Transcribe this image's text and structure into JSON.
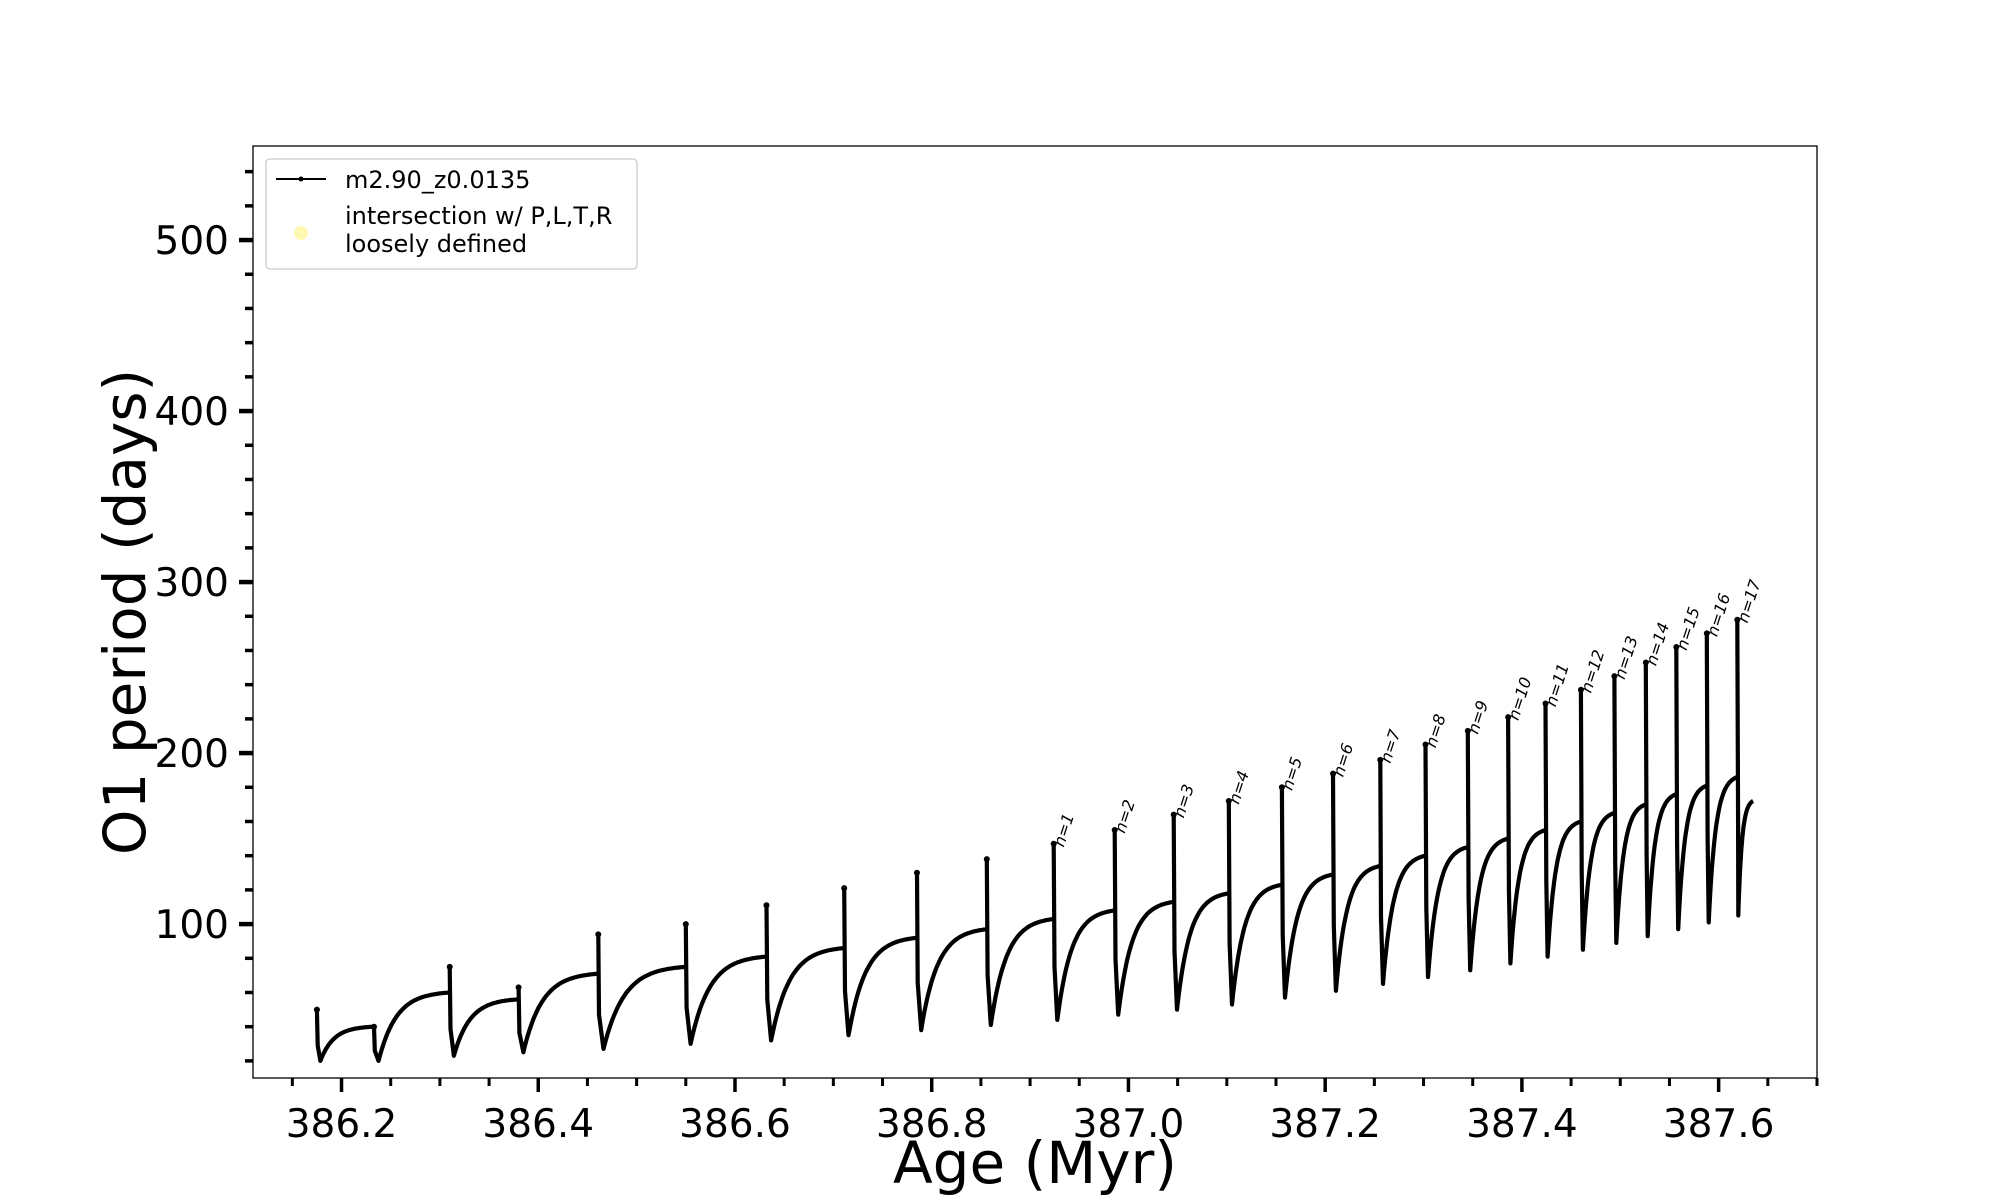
{
  "chart_data": {
    "type": "line",
    "title": "",
    "xlabel": "Age (Myr)",
    "ylabel": "O1 period (days)",
    "xlim": [
      386.11,
      387.7
    ],
    "ylim": [
      10,
      555
    ],
    "xticks": [
      386.2,
      386.4,
      386.6,
      386.8,
      387.0,
      387.2,
      387.4,
      387.6
    ],
    "xtick_labels": [
      "386.2",
      "386.4",
      "386.6",
      "386.8",
      "387.0",
      "387.2",
      "387.4",
      "387.6"
    ],
    "yticks": [
      100,
      200,
      300,
      400,
      500
    ],
    "ytick_labels": [
      "100",
      "200",
      "300",
      "400",
      "500"
    ],
    "grid": false,
    "legend_position": "top-left",
    "legend": [
      {
        "label": "m2.90_z0.0135",
        "marker": "line-dot",
        "color": "#000000"
      },
      {
        "label_lines": [
          "intersection w/ P,L,T,R",
          "loosely defined"
        ],
        "marker": "circle",
        "color": "#fff8b0"
      }
    ],
    "series": [
      {
        "name": "m2.90_z0.0135",
        "color": "#000000",
        "cycles": [
          {
            "start": 386.175,
            "end": 386.233,
            "spike": 50,
            "min": 20,
            "plateau": 40
          },
          {
            "start": 386.233,
            "end": 386.31,
            "spike": 40,
            "min": 20,
            "plateau": 60
          },
          {
            "start": 386.31,
            "end": 386.38,
            "spike": 75,
            "min": 23,
            "plateau": 56
          },
          {
            "start": 386.38,
            "end": 386.461,
            "spike": 63,
            "min": 25,
            "plateau": 71
          },
          {
            "start": 386.461,
            "end": 386.55,
            "spike": 94,
            "min": 27,
            "plateau": 75
          },
          {
            "start": 386.55,
            "end": 386.632,
            "spike": 100,
            "min": 30,
            "plateau": 81
          },
          {
            "start": 386.632,
            "end": 386.711,
            "spike": 111,
            "min": 32,
            "plateau": 86
          },
          {
            "start": 386.711,
            "end": 386.785,
            "spike": 121,
            "min": 35,
            "plateau": 92
          },
          {
            "start": 386.785,
            "end": 386.856,
            "spike": 130,
            "min": 38,
            "plateau": 97
          },
          {
            "start": 386.856,
            "end": 386.924,
            "spike": 138,
            "min": 41,
            "plateau": 103
          },
          {
            "start": 386.924,
            "end": 386.986,
            "spike": 147,
            "min": 44,
            "plateau": 108,
            "label": "n=1"
          },
          {
            "start": 386.986,
            "end": 387.046,
            "spike": 155,
            "min": 47,
            "plateau": 113,
            "label": "n=2"
          },
          {
            "start": 387.046,
            "end": 387.102,
            "spike": 164,
            "min": 50,
            "plateau": 118,
            "label": "n=3"
          },
          {
            "start": 387.102,
            "end": 387.156,
            "spike": 172,
            "min": 53,
            "plateau": 123,
            "label": "n=4"
          },
          {
            "start": 387.156,
            "end": 387.208,
            "spike": 180,
            "min": 57,
            "plateau": 129,
            "label": "n=5"
          },
          {
            "start": 387.208,
            "end": 387.256,
            "spike": 188,
            "min": 61,
            "plateau": 134,
            "label": "n=6"
          },
          {
            "start": 387.256,
            "end": 387.302,
            "spike": 196,
            "min": 65,
            "plateau": 140,
            "label": "n=7"
          },
          {
            "start": 387.302,
            "end": 387.345,
            "spike": 205,
            "min": 69,
            "plateau": 145,
            "label": "n=8"
          },
          {
            "start": 387.345,
            "end": 387.386,
            "spike": 213,
            "min": 73,
            "plateau": 150,
            "label": "n=9"
          },
          {
            "start": 387.386,
            "end": 387.424,
            "spike": 221,
            "min": 77,
            "plateau": 155,
            "label": "n=10"
          },
          {
            "start": 387.424,
            "end": 387.46,
            "spike": 229,
            "min": 81,
            "plateau": 160,
            "label": "n=11"
          },
          {
            "start": 387.46,
            "end": 387.494,
            "spike": 237,
            "min": 85,
            "plateau": 165,
            "label": "n=12"
          },
          {
            "start": 387.494,
            "end": 387.526,
            "spike": 245,
            "min": 89,
            "plateau": 170,
            "label": "n=13"
          },
          {
            "start": 387.526,
            "end": 387.557,
            "spike": 253,
            "min": 93,
            "plateau": 176,
            "label": "n=14"
          },
          {
            "start": 387.557,
            "end": 387.588,
            "spike": 262,
            "min": 97,
            "plateau": 181,
            "label": "n=15"
          },
          {
            "start": 387.588,
            "end": 387.619,
            "spike": 270,
            "min": 101,
            "plateau": 186,
            "label": "n=16"
          },
          {
            "start": 387.619,
            "end": 387.635,
            "spike": 278,
            "min": 105,
            "plateau": 172,
            "label": "n=17"
          }
        ]
      }
    ]
  }
}
